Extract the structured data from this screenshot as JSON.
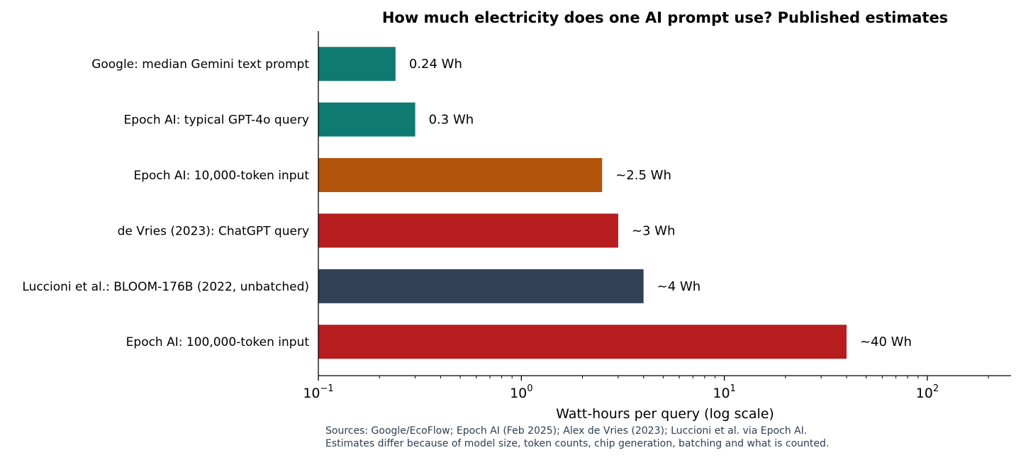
{
  "chart_data": {
    "type": "bar",
    "orientation": "horizontal",
    "title": "How much electricity does one AI prompt use? Published estimates",
    "xlabel": "Watt-hours per query (log scale)",
    "x_scale": "log",
    "xlim": [
      0.1,
      250
    ],
    "x_ticks": [
      {
        "base": "10",
        "exp": "−1",
        "value": 0.1
      },
      {
        "base": "10",
        "exp": "0",
        "value": 1
      },
      {
        "base": "10",
        "exp": "1",
        "value": 10
      },
      {
        "base": "10",
        "exp": "2",
        "value": 100
      }
    ],
    "grid": false,
    "bars": [
      {
        "category": "Google: median Gemini text prompt",
        "value": 0.24,
        "label": "0.24 Wh",
        "color": "#0e7a72"
      },
      {
        "category": "Epoch AI: typical GPT-4o query",
        "value": 0.3,
        "label": "0.3 Wh",
        "color": "#0e7a72"
      },
      {
        "category": "Epoch AI: 10,000-token input",
        "value": 2.5,
        "label": "~2.5 Wh",
        "color": "#b2540c"
      },
      {
        "category": "de Vries (2023): ChatGPT query",
        "value": 3,
        "label": "~3 Wh",
        "color": "#b71c1f"
      },
      {
        "category": "Luccioni et al.: BLOOM-176B (2022, unbatched)",
        "value": 4,
        "label": "~4 Wh",
        "color": "#324256"
      },
      {
        "category": "Epoch AI: 100,000-token input",
        "value": 40,
        "label": "~40 Wh",
        "color": "#b71c1f"
      }
    ],
    "notes": [
      "Sources: Google/EcoFlow; Epoch AI (Feb 2025); Alex de Vries (2023); Luccioni et al. via Epoch AI.",
      "Estimates differ because of model size, token counts, chip generation, batching and what is counted."
    ]
  }
}
